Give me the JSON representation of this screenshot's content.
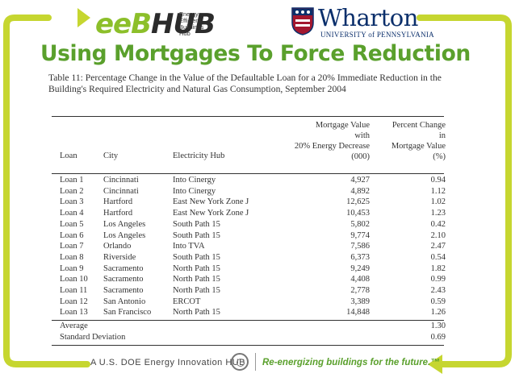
{
  "logos": {
    "eeb_prefix": "eeB",
    "eeb_suffix": "HUB",
    "eeb_tagline": [
      "Energy",
      "Efficient",
      "Buildings",
      "Hub"
    ],
    "wharton": "Wharton",
    "upenn": "UNIVERSITY of PENNSYLVANIA"
  },
  "slide_title": "Using Mortgages To Force Reduction",
  "table": {
    "caption": "Table 11: Percentage Change in the Value of the Defaultable Loan for a 20% Immediate Reduction in the Building's Required Electricity and Natural Gas Consumption, September 2004",
    "headers": {
      "loan": "Loan",
      "city": "City",
      "hub": "Electricity Hub",
      "mv": [
        "Mortgage Value",
        "with",
        "20% Energy Decrease",
        "(000)"
      ],
      "pc": [
        "Percent Change",
        "in",
        "Mortgage Value",
        "(%)"
      ]
    },
    "rows": [
      {
        "loan": "Loan 1",
        "city": "Cincinnati",
        "hub": "Into Cinergy",
        "mv": "4,927",
        "pc": "0.94"
      },
      {
        "loan": "Loan 2",
        "city": "Cincinnati",
        "hub": "Into Cinergy",
        "mv": "4,892",
        "pc": "1.12"
      },
      {
        "loan": "Loan 3",
        "city": "Hartford",
        "hub": "East New York Zone J",
        "mv": "12,625",
        "pc": "1.02"
      },
      {
        "loan": "Loan 4",
        "city": "Hartford",
        "hub": "East New York Zone J",
        "mv": "10,453",
        "pc": "1.23"
      },
      {
        "loan": "Loan 5",
        "city": "Los Angeles",
        "hub": "South Path 15",
        "mv": "5,802",
        "pc": "0.42"
      },
      {
        "loan": "Loan 6",
        "city": "Los Angeles",
        "hub": "South Path 15",
        "mv": "9,774",
        "pc": "2.10"
      },
      {
        "loan": "Loan 7",
        "city": "Orlando",
        "hub": "Into TVA",
        "mv": "7,586",
        "pc": "2.47"
      },
      {
        "loan": "Loan 8",
        "city": "Riverside",
        "hub": "South Path 15",
        "mv": "6,373",
        "pc": "0.54"
      },
      {
        "loan": "Loan 9",
        "city": "Sacramento",
        "hub": "North Path 15",
        "mv": "9,249",
        "pc": "1.82"
      },
      {
        "loan": "Loan 10",
        "city": "Sacramento",
        "hub": "North Path 15",
        "mv": "4,408",
        "pc": "0.99"
      },
      {
        "loan": "Loan 11",
        "city": "Sacramento",
        "hub": "North Path 15",
        "mv": "2,778",
        "pc": "2.43"
      },
      {
        "loan": "Loan 12",
        "city": "San Antonio",
        "hub": "ERCOT",
        "mv": "3,389",
        "pc": "0.59"
      },
      {
        "loan": "Loan 13",
        "city": "San Francisco",
        "hub": "North Path 15",
        "mv": "14,848",
        "pc": "1.26"
      }
    ],
    "summary": [
      {
        "label": "Average",
        "pc": "1.30"
      },
      {
        "label": "Standard Deviation",
        "pc": "0.69"
      }
    ]
  },
  "footer": {
    "left": "A  U.S. DOE Energy Innovation HUB",
    "right": "Re-energizing buildings for the future.™"
  },
  "colors": {
    "frame_green": "#c6d630",
    "title_green": "#5aa02c",
    "wharton_blue": "#0b2f6b"
  }
}
